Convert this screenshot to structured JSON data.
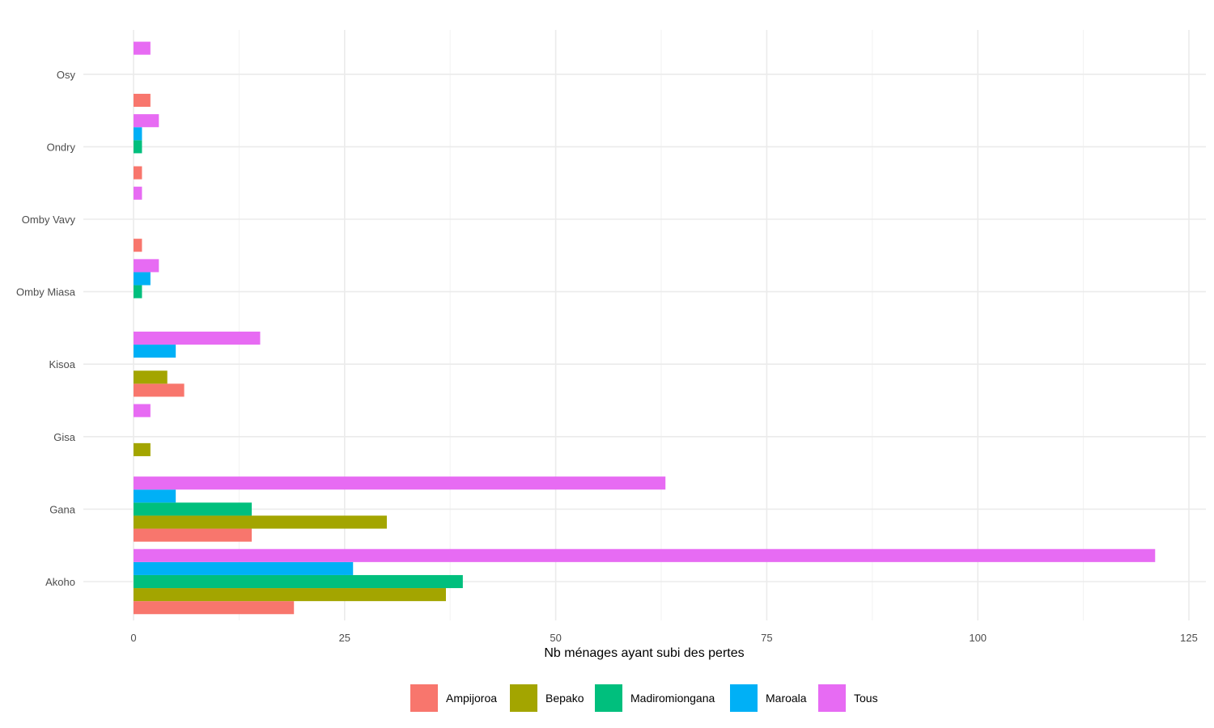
{
  "chart_data": {
    "type": "bar",
    "orientation": "horizontal",
    "title": "",
    "xlabel": "Nb ménages ayant subi des pertes",
    "ylabel": "",
    "xlim": [
      -3,
      127
    ],
    "xticks": [
      0,
      25,
      50,
      75,
      100,
      125
    ],
    "grid": true,
    "legend_position": "bottom",
    "categories": [
      "Akoho",
      "Gana",
      "Gisa",
      "Kisoa",
      "Omby Miasa",
      "Omby Vavy",
      "Ondry",
      "Osy"
    ],
    "series": [
      {
        "name": "Ampijoroa",
        "color": "#F8766D",
        "values": [
          19,
          14,
          null,
          6,
          null,
          1,
          1,
          2
        ]
      },
      {
        "name": "Bepako",
        "color": "#A3A500",
        "values": [
          37,
          30,
          2,
          4,
          null,
          null,
          null,
          null
        ]
      },
      {
        "name": "Madiromiongana",
        "color": "#00BF7D",
        "values": [
          39,
          14,
          null,
          null,
          1,
          null,
          1,
          null
        ]
      },
      {
        "name": "Maroala",
        "color": "#00B0F6",
        "values": [
          26,
          5,
          null,
          5,
          2,
          null,
          1,
          null
        ]
      },
      {
        "name": "Tous",
        "color": "#E76BF3",
        "values": [
          121,
          63,
          2,
          15,
          3,
          1,
          3,
          2
        ]
      }
    ]
  }
}
